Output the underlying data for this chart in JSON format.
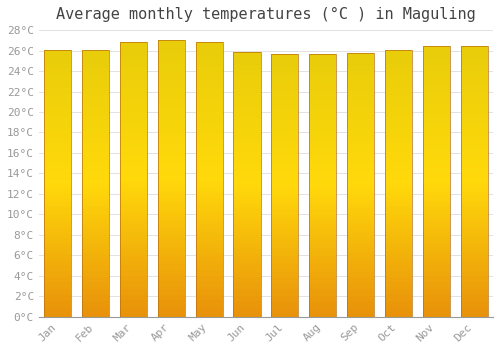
{
  "title": "Average monthly temperatures (°C ) in Maguling",
  "months": [
    "Jan",
    "Feb",
    "Mar",
    "Apr",
    "May",
    "Jun",
    "Jul",
    "Aug",
    "Sep",
    "Oct",
    "Nov",
    "Dec"
  ],
  "values": [
    26.1,
    26.1,
    26.8,
    27.0,
    26.8,
    25.9,
    25.7,
    25.7,
    25.8,
    26.1,
    26.4,
    26.4
  ],
  "bar_color_center": "#FFD966",
  "bar_color_edge": "#E8920A",
  "bar_edge_color": "#B87010",
  "ylim": [
    0,
    28
  ],
  "ytick_step": 2,
  "background_color": "#FFFFFF",
  "grid_color": "#DDDDDD",
  "title_fontsize": 11,
  "tick_fontsize": 8,
  "tick_color": "#999999"
}
